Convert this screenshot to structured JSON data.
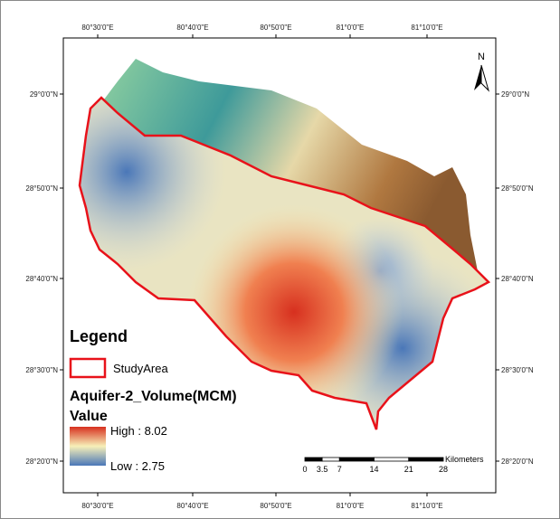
{
  "map": {
    "top_labels": [
      "80°30'0\"E",
      "80°40'0\"E",
      "80°50'0\"E",
      "81°0'0\"E",
      "81°10'0\"E"
    ],
    "bottom_labels": [
      "80°30'0\"E",
      "80°40'0\"E",
      "80°50'0\"E",
      "81°0'0\"E",
      "81°10'0\"E"
    ],
    "left_labels": [
      "29°0'0\"N",
      "28°50'0\"N",
      "28°40'0\"N",
      "28°30'0\"N",
      "28°20'0\"N"
    ],
    "right_labels": [
      "29°0'0\"N",
      "28°50'0\"N",
      "28°40'0\"N",
      "28°30'0\"N",
      "28°20'0\"N"
    ],
    "north": "N",
    "legend": {
      "title": "Legend",
      "study_area": "StudyArea",
      "layer": "Aquifer-2_Volume(MCM)",
      "value_heading": "Value",
      "high": "High : 8.02",
      "low": "Low : 2.75"
    },
    "scale_bar": {
      "ticks": [
        0,
        3.5,
        7,
        14,
        21,
        28
      ],
      "unit": "Kilometers"
    }
  }
}
